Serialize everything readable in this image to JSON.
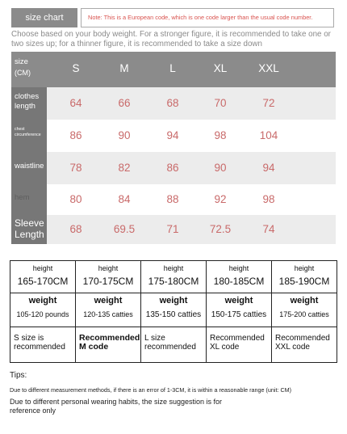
{
  "header": {
    "tab_label": "size chart",
    "note": "Note: This is a European code, which is one code larger than the usual code number."
  },
  "instruction": "Choose based on your body weight. For a stronger figure, it is recommended to take one or two sizes up; for a thinner figure, it is recommended to take a size down",
  "size_table": {
    "header_label": "size",
    "header_unit": "(CM)",
    "sizes": [
      "S",
      "M",
      "L",
      "XL",
      "XXL"
    ],
    "rows": [
      {
        "label": "clothes length",
        "values": [
          "64",
          "66",
          "68",
          "70",
          "72"
        ]
      },
      {
        "label": "chest circumference",
        "values": [
          "86",
          "90",
          "94",
          "98",
          "104"
        ]
      },
      {
        "label": "waistline",
        "values": [
          "78",
          "82",
          "86",
          "90",
          "94"
        ]
      },
      {
        "label": "hem",
        "values": [
          "80",
          "84",
          "88",
          "92",
          "98"
        ]
      },
      {
        "label": "Sleeve Length",
        "values": [
          "68",
          "69.5",
          "71",
          "72.5",
          "74"
        ]
      }
    ]
  },
  "recommendation": {
    "height_label": "height",
    "weight_label": "weight",
    "columns": [
      {
        "height": "165-170CM",
        "weight": "105-120 pounds",
        "recommendation": "S size is recommended"
      },
      {
        "height": "170-175CM",
        "weight": "120-135 catties",
        "recommendation": "Recommended M code"
      },
      {
        "height": "175-180CM",
        "weight": "135-150 catties",
        "recommendation": "L size recommended"
      },
      {
        "height": "180-185CM",
        "weight": "150-175 catties",
        "recommendation": "Recommended XL code"
      },
      {
        "height": "185-190CM",
        "weight": "175-200 catties",
        "recommendation": "Recommended XXL code"
      }
    ]
  },
  "tips": {
    "title": "Tips:",
    "items": [
      "Due to different measurement methods, if there is an error of 1-3CM, it is within a reasonable range (unit: CM)",
      "Due to different personal wearing habits, the size suggestion is for reference only"
    ]
  }
}
